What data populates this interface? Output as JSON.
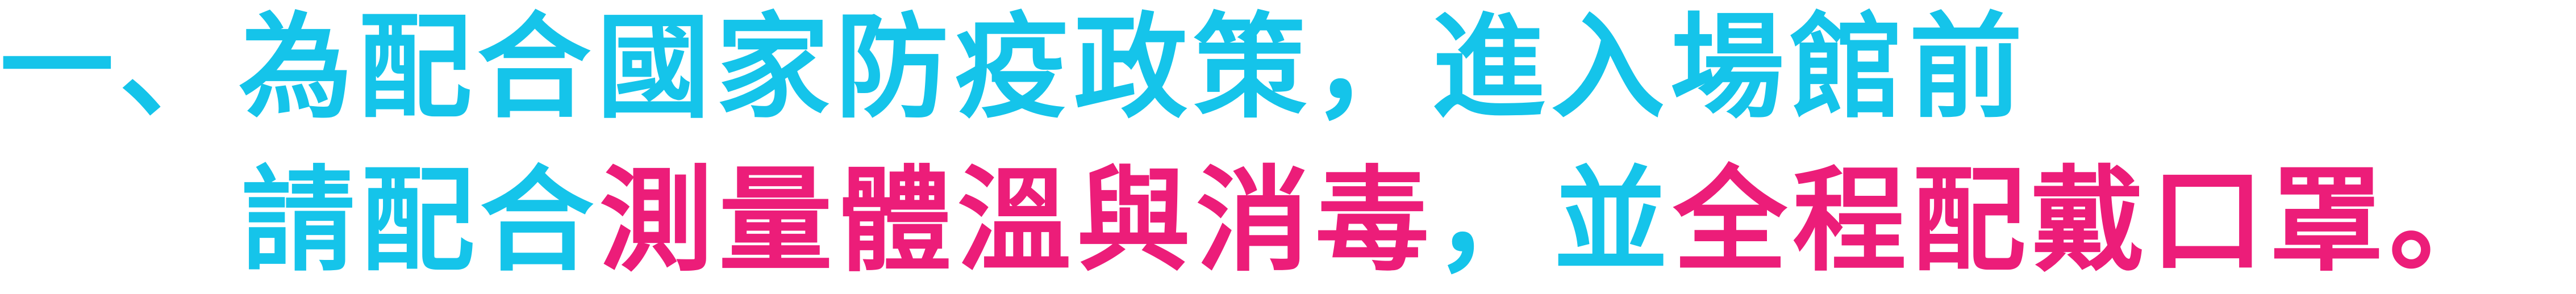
{
  "colors": {
    "primary": "#15c4ea",
    "highlight": "#ec1d79",
    "background": "#ffffff"
  },
  "notice": {
    "line1": {
      "marker": "一、",
      "text": "為配合國家防疫政策，進入場館前"
    },
    "line2": {
      "part1": "請配合",
      "part2": "測量體溫與消毒",
      "part3": "，並",
      "part4": "全程配戴口罩。"
    }
  }
}
